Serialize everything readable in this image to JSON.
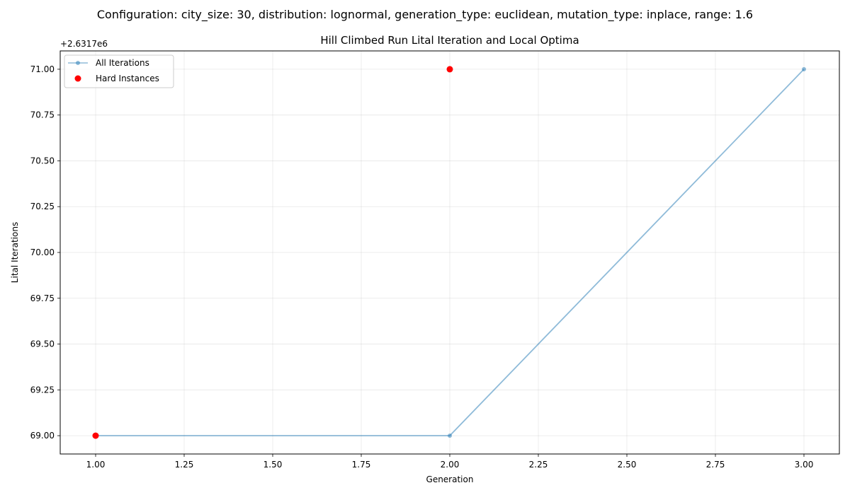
{
  "figure": {
    "suptitle": "Configuration: city_size: 30, distribution: lognormal, generation_type: euclidean, mutation_type: inplace, range: 1.6"
  },
  "chart_data": {
    "type": "line",
    "title": "Hill Climbed Run Lital Iteration and Local Optima",
    "xlabel": "Generation",
    "ylabel": "Lital Iterations",
    "offset_label": "+2.6317e6",
    "y_offset": 2631700,
    "xlim": [
      0.9,
      3.1
    ],
    "ylim": [
      68.9,
      71.1
    ],
    "xticks": [
      1.0,
      1.25,
      1.5,
      1.75,
      2.0,
      2.25,
      2.5,
      2.75,
      3.0
    ],
    "xtick_labels": [
      "1.00",
      "1.25",
      "1.50",
      "1.75",
      "2.00",
      "2.25",
      "2.50",
      "2.75",
      "3.00"
    ],
    "yticks": [
      69.0,
      69.25,
      69.5,
      69.75,
      70.0,
      70.25,
      70.5,
      70.75,
      71.0
    ],
    "ytick_labels": [
      "69.00",
      "69.25",
      "69.50",
      "69.75",
      "70.00",
      "70.25",
      "70.50",
      "70.75",
      "71.00"
    ],
    "grid": true,
    "legend_position": "top-left",
    "series": [
      {
        "name": "All Iterations",
        "kind": "line",
        "color": "#1f77b4",
        "x": [
          1,
          2,
          3
        ],
        "y": [
          69.0,
          69.0,
          71.0
        ]
      },
      {
        "name": "Hard Instances",
        "kind": "scatter",
        "color": "#ff0000",
        "x": [
          1,
          2
        ],
        "y": [
          69.0,
          71.0
        ]
      }
    ]
  }
}
